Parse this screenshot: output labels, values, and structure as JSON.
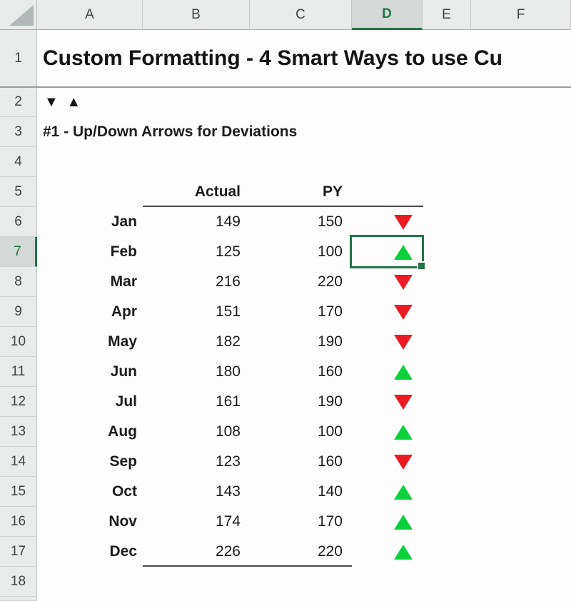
{
  "sheet": {
    "column_headers": [
      "A",
      "B",
      "C",
      "D",
      "E",
      "F"
    ],
    "row_numbers": [
      1,
      2,
      3,
      4,
      5,
      6,
      7,
      8,
      9,
      10,
      11,
      12,
      13,
      14,
      15,
      16,
      17,
      18
    ],
    "selected_column": "D",
    "selected_row": 7
  },
  "cells": {
    "title": "Custom Formatting - 4 Smart Ways to use Cu",
    "arrow_legend": "▼ ▲",
    "section_heading": "#1 - Up/Down Arrows for Deviations"
  },
  "table": {
    "col_actual": "Actual",
    "col_py": "PY",
    "rows": [
      {
        "month": "Jan",
        "actual": "149",
        "py": "150",
        "direction": "down"
      },
      {
        "month": "Feb",
        "actual": "125",
        "py": "100",
        "direction": "up"
      },
      {
        "month": "Mar",
        "actual": "216",
        "py": "220",
        "direction": "down"
      },
      {
        "month": "Apr",
        "actual": "151",
        "py": "170",
        "direction": "down"
      },
      {
        "month": "May",
        "actual": "182",
        "py": "190",
        "direction": "down"
      },
      {
        "month": "Jun",
        "actual": "180",
        "py": "160",
        "direction": "up"
      },
      {
        "month": "Jul",
        "actual": "161",
        "py": "190",
        "direction": "down"
      },
      {
        "month": "Aug",
        "actual": "108",
        "py": "100",
        "direction": "up"
      },
      {
        "month": "Sep",
        "actual": "123",
        "py": "160",
        "direction": "down"
      },
      {
        "month": "Oct",
        "actual": "143",
        "py": "140",
        "direction": "up"
      },
      {
        "month": "Nov",
        "actual": "174",
        "py": "170",
        "direction": "up"
      },
      {
        "month": "Dec",
        "actual": "226",
        "py": "220",
        "direction": "up"
      }
    ]
  },
  "colors": {
    "excel_green": "#217346",
    "up_arrow": "#0bd23c",
    "down_arrow": "#ec1c24",
    "selected_header_bg": "#d4d8d6"
  }
}
